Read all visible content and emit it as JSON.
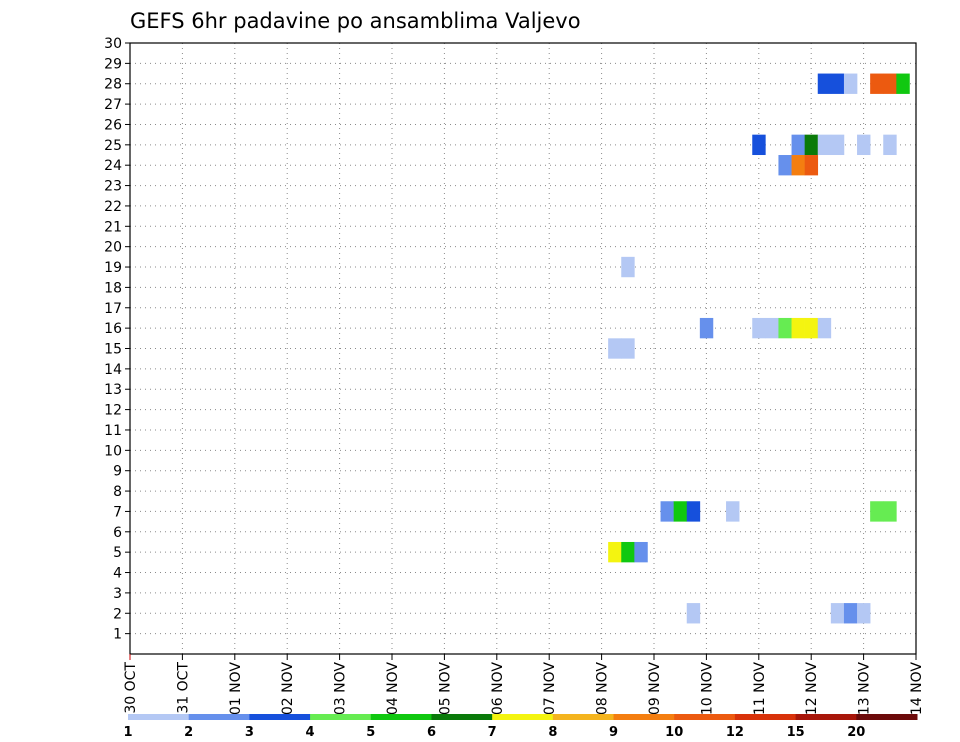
{
  "chart_data": {
    "type": "heatmap",
    "title": "GEFS 6hr padavine po ansamblima Valjevo",
    "xlabel": "",
    "ylabel": "",
    "x_ticks": [
      "30 OCT",
      "31 OCT",
      "01 NOV",
      "02 NOV",
      "03 NOV",
      "04 NOV",
      "05 NOV",
      "06 NOV",
      "07 NOV",
      "08 NOV",
      "09 NOV",
      "10 NOV",
      "11 NOV",
      "12 NOV",
      "13 NOV",
      "14 NOV"
    ],
    "x_range_days": [
      0,
      15
    ],
    "y_ticks": [
      1,
      2,
      3,
      4,
      5,
      6,
      7,
      8,
      9,
      10,
      11,
      12,
      13,
      14,
      15,
      16,
      17,
      18,
      19,
      20,
      21,
      22,
      23,
      24,
      25,
      26,
      27,
      28,
      29,
      30
    ],
    "y_range": [
      0,
      30
    ],
    "grid": true,
    "colorbar": {
      "labels": [
        "1",
        "2",
        "3",
        "4",
        "5",
        "6",
        "7",
        "8",
        "9",
        "10",
        "12",
        "15",
        "20"
      ],
      "colors": [
        "#b4c8f4",
        "#6690ec",
        "#1650dc",
        "#66ec52",
        "#10c810",
        "#0a7a0a",
        "#f4f410",
        "#f4b41e",
        "#f47e10",
        "#ec5a10",
        "#d8320a",
        "#a8160a",
        "#6c0a0a"
      ]
    },
    "cells": [
      {
        "member": 28,
        "date": "12 NOV 06Z",
        "value": 3
      },
      {
        "member": 28,
        "date": "12 NOV 12Z",
        "value": 3
      },
      {
        "member": 28,
        "date": "12 NOV 18Z",
        "value": 1
      },
      {
        "member": 28,
        "date": "13 NOV 06Z",
        "value": 10
      },
      {
        "member": 28,
        "date": "13 NOV 12Z",
        "value": 10
      },
      {
        "member": 28,
        "date": "13 NOV 18Z",
        "value": 5
      },
      {
        "member": 25,
        "date": "11 NOV 00Z",
        "value": 3
      },
      {
        "member": 25,
        "date": "11 NOV 18Z",
        "value": 2
      },
      {
        "member": 25,
        "date": "12 NOV 00Z",
        "value": 6
      },
      {
        "member": 25,
        "date": "12 NOV 06Z",
        "value": 1
      },
      {
        "member": 25,
        "date": "12 NOV 12Z",
        "value": 1
      },
      {
        "member": 25,
        "date": "13 NOV 00Z",
        "value": 1
      },
      {
        "member": 25,
        "date": "13 NOV 12Z",
        "value": 1
      },
      {
        "member": 24,
        "date": "11 NOV 12Z",
        "value": 2
      },
      {
        "member": 24,
        "date": "11 NOV 18Z",
        "value": 9
      },
      {
        "member": 24,
        "date": "12 NOV 00Z",
        "value": 10
      },
      {
        "member": 19,
        "date": "08 NOV 12Z",
        "value": 1
      },
      {
        "member": 16,
        "date": "10 NOV 00Z",
        "value": 2
      },
      {
        "member": 16,
        "date": "11 NOV 00Z",
        "value": 1
      },
      {
        "member": 16,
        "date": "11 NOV 06Z",
        "value": 1
      },
      {
        "member": 16,
        "date": "11 NOV 12Z",
        "value": 4
      },
      {
        "member": 16,
        "date": "11 NOV 18Z",
        "value": 7
      },
      {
        "member": 16,
        "date": "12 NOV 00Z",
        "value": 7
      },
      {
        "member": 16,
        "date": "12 NOV 06Z",
        "value": 1
      },
      {
        "member": 15,
        "date": "08 NOV 06Z",
        "value": 1
      },
      {
        "member": 15,
        "date": "08 NOV 12Z",
        "value": 1
      },
      {
        "member": 7,
        "date": "09 NOV 06Z",
        "value": 2
      },
      {
        "member": 7,
        "date": "09 NOV 12Z",
        "value": 5
      },
      {
        "member": 7,
        "date": "09 NOV 18Z",
        "value": 3
      },
      {
        "member": 7,
        "date": "10 NOV 12Z",
        "value": 1
      },
      {
        "member": 7,
        "date": "13 NOV 06Z",
        "value": 4
      },
      {
        "member": 7,
        "date": "13 NOV 12Z",
        "value": 4
      },
      {
        "member": 5,
        "date": "08 NOV 06Z",
        "value": 7
      },
      {
        "member": 5,
        "date": "08 NOV 12Z",
        "value": 5
      },
      {
        "member": 5,
        "date": "08 NOV 18Z",
        "value": 2
      },
      {
        "member": 2,
        "date": "09 NOV 18Z",
        "value": 1
      },
      {
        "member": 2,
        "date": "12 NOV 12Z",
        "value": 1
      },
      {
        "member": 2,
        "date": "12 NOV 18Z",
        "value": 2
      },
      {
        "member": 2,
        "date": "13 NOV 00Z",
        "value": 1
      }
    ]
  }
}
